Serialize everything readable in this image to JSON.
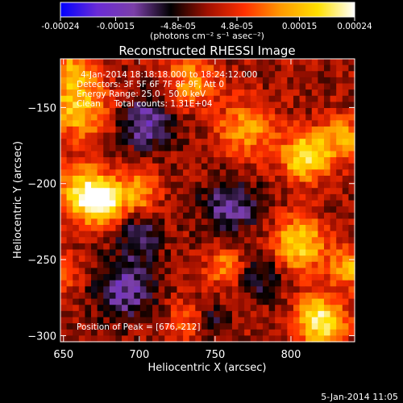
{
  "chart_data": {
    "type": "heatmap",
    "title": "Reconstructed RHESSI Image",
    "xlabel": "Heliocentric X (arcsec)",
    "ylabel": "Heliocentric Y (arcsec)",
    "xlim": [
      648,
      842
    ],
    "ylim": [
      -304,
      -118
    ],
    "x_ticks": [
      650,
      700,
      750,
      800
    ],
    "y_ticks": [
      -150,
      -200,
      -250,
      -300
    ],
    "colorbar": {
      "range": [
        -0.00024,
        0.00024
      ],
      "tick_labels": [
        "-0.00024",
        "-0.00015",
        "-4.8e-05",
        "4.8e-05",
        "0.00015",
        "0.00024"
      ],
      "tick_values": [
        -0.00024,
        -0.00015,
        -4.8e-05,
        4.8e-05,
        0.00015,
        0.00024
      ],
      "units_label": "(photons cm⁻² s⁻¹ asec⁻²)",
      "colormap": [
        "#0000ff",
        "#6a2bd6",
        "#7b3fa8",
        "#000000",
        "#a01000",
        "#ff3000",
        "#ff9a00",
        "#ffe000",
        "#ffffff"
      ]
    },
    "info_lines": [
      "4-Jan-2014 18:18:18.000 to 18:24:12.000",
      "Detectors: 3F 5F 6F 7F 8F 9F, Att 0",
      "Energy Range: 25.0 - 50.0 keV",
      "Clean     Total counts: 1.31E+04"
    ],
    "peak_label": "Position of Peak = [676,-212]",
    "peak": [
      676,
      -212
    ],
    "grid": false,
    "timestamp": "5-Jan-2014 11:05",
    "image_sources": [
      {
        "x": 676,
        "y": -212,
        "value": 0.00024,
        "sigma": 10
      },
      {
        "x": 662,
        "y": -205,
        "value": 0.00016,
        "sigma": 12
      },
      {
        "x": 700,
        "y": -205,
        "value": 0.00013,
        "sigma": 9
      },
      {
        "x": 660,
        "y": -150,
        "value": 0.00016,
        "sigma": 14
      },
      {
        "x": 655,
        "y": -125,
        "value": 0.00012,
        "sigma": 10
      },
      {
        "x": 735,
        "y": -132,
        "value": 0.00012,
        "sigma": 12
      },
      {
        "x": 770,
        "y": -165,
        "value": 0.00013,
        "sigma": 13
      },
      {
        "x": 810,
        "y": -182,
        "value": 0.00021,
        "sigma": 11
      },
      {
        "x": 835,
        "y": -170,
        "value": 0.00013,
        "sigma": 10
      },
      {
        "x": 805,
        "y": -240,
        "value": 0.00019,
        "sigma": 12
      },
      {
        "x": 820,
        "y": -290,
        "value": 0.00023,
        "sigma": 11
      },
      {
        "x": 838,
        "y": -255,
        "value": 0.00014,
        "sigma": 9
      },
      {
        "x": 757,
        "y": -255,
        "value": 0.00011,
        "sigma": 9
      },
      {
        "x": 735,
        "y": -290,
        "value": 0.00011,
        "sigma": 10
      },
      {
        "x": 650,
        "y": -260,
        "value": 8e-05,
        "sigma": 9
      },
      {
        "x": 705,
        "y": -160,
        "value": -0.00014,
        "sigma": 12
      },
      {
        "x": 690,
        "y": -270,
        "value": -0.00013,
        "sigma": 14
      },
      {
        "x": 760,
        "y": -215,
        "value": -0.00012,
        "sigma": 13
      },
      {
        "x": 745,
        "y": -290,
        "value": -0.00011,
        "sigma": 9
      },
      {
        "x": 700,
        "y": -235,
        "value": -0.0001,
        "sigma": 10
      },
      {
        "x": 780,
        "y": -260,
        "value": -9e-05,
        "sigma": 10
      }
    ]
  }
}
